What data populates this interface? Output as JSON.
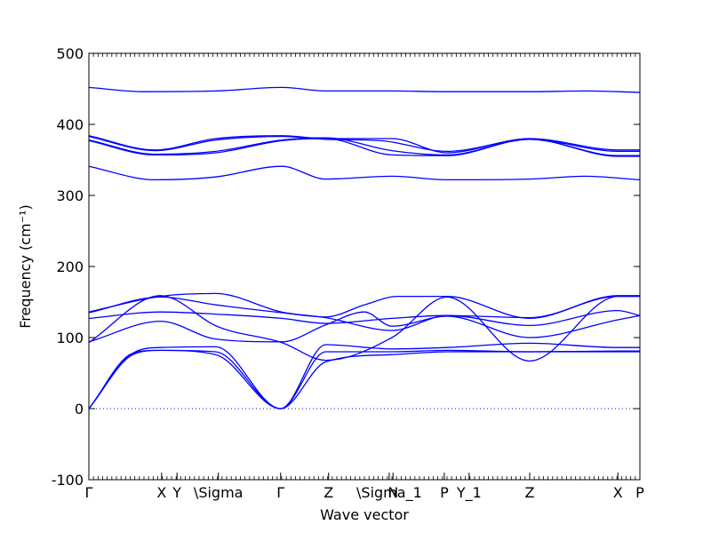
{
  "chart_data": {
    "type": "line",
    "title": "",
    "xlabel": "Wave vector",
    "ylabel": "Frequency (cm⁻¹)",
    "ylim": [
      -100,
      500
    ],
    "yticks": [
      -100,
      0,
      100,
      200,
      300,
      400,
      500
    ],
    "x_range": [
      0,
      10
    ],
    "xticks": [
      {
        "label": "Γ",
        "x": 0
      },
      {
        "label": "X",
        "x": 1.32
      },
      {
        "label": "Y",
        "x": 1.6
      },
      {
        "label": "\\Sigma",
        "x": 2.35
      },
      {
        "label": "Γ",
        "x": 3.48
      },
      {
        "label": "Z",
        "x": 4.35
      },
      {
        "label": "\\Sigma_1",
        "x": 5.45
      },
      {
        "label": "N",
        "x": 5.52
      },
      {
        "label": "P",
        "x": 6.45
      },
      {
        "label": "Y_1",
        "x": 6.9
      },
      {
        "label": "Z",
        "x": 8.0
      },
      {
        "label": "X",
        "x": 9.6
      },
      {
        "label": "P",
        "x": 10.0
      }
    ],
    "zero_line": 0,
    "line_color": "#0000ff",
    "series": [
      {
        "points": [
          [
            0,
            452
          ],
          [
            1.0,
            446
          ],
          [
            2.3,
            447
          ],
          [
            3.5,
            452
          ],
          [
            4.3,
            447
          ],
          [
            5.5,
            447
          ],
          [
            6.5,
            446
          ],
          [
            8.0,
            446
          ],
          [
            9.0,
            447
          ],
          [
            10,
            445
          ]
        ]
      },
      {
        "points": [
          [
            0,
            384
          ],
          [
            1.2,
            364
          ],
          [
            2.3,
            380
          ],
          [
            3.5,
            384
          ],
          [
            4.3,
            380
          ],
          [
            5.5,
            380
          ],
          [
            6.5,
            360
          ],
          [
            8.0,
            380
          ],
          [
            9.6,
            364
          ],
          [
            10,
            364
          ]
        ]
      },
      {
        "points": [
          [
            0,
            383
          ],
          [
            1.2,
            363
          ],
          [
            2.3,
            378
          ],
          [
            3.5,
            383
          ],
          [
            4.3,
            379
          ],
          [
            5.3,
            377
          ],
          [
            6.5,
            362
          ],
          [
            8.0,
            379
          ],
          [
            9.6,
            362
          ],
          [
            10,
            362
          ]
        ]
      },
      {
        "points": [
          [
            0,
            378
          ],
          [
            1.2,
            358
          ],
          [
            2.3,
            362
          ],
          [
            3.5,
            378
          ],
          [
            4.3,
            381
          ],
          [
            5.5,
            363
          ],
          [
            6.5,
            357
          ],
          [
            8.0,
            379
          ],
          [
            9.6,
            356
          ],
          [
            10,
            356
          ]
        ]
      },
      {
        "points": [
          [
            0,
            377
          ],
          [
            1.2,
            357
          ],
          [
            2.3,
            360
          ],
          [
            3.5,
            377
          ],
          [
            4.3,
            380
          ],
          [
            5.5,
            357
          ],
          [
            6.5,
            356
          ],
          [
            8.0,
            379
          ],
          [
            9.6,
            355
          ],
          [
            10,
            355
          ]
        ]
      },
      {
        "points": [
          [
            0,
            341
          ],
          [
            1.2,
            322
          ],
          [
            2.3,
            326
          ],
          [
            3.5,
            341
          ],
          [
            4.3,
            323
          ],
          [
            5.5,
            327
          ],
          [
            6.5,
            322
          ],
          [
            8.0,
            323
          ],
          [
            9.0,
            327
          ],
          [
            10,
            322
          ]
        ]
      },
      {
        "points": [
          [
            0,
            136
          ],
          [
            1.3,
            158
          ],
          [
            2.3,
            162
          ],
          [
            3.5,
            136
          ],
          [
            4.3,
            128
          ],
          [
            5.5,
            110
          ],
          [
            6.5,
            131
          ],
          [
            8.0,
            128
          ],
          [
            9.6,
            158
          ],
          [
            10,
            158
          ]
        ]
      },
      {
        "points": [
          [
            0,
            135
          ],
          [
            1.3,
            157
          ],
          [
            2.3,
            146
          ],
          [
            3.5,
            135
          ],
          [
            4.3,
            129
          ],
          [
            5.0,
            146
          ],
          [
            5.6,
            158
          ],
          [
            6.5,
            158
          ],
          [
            8.0,
            127
          ],
          [
            9.6,
            159
          ],
          [
            10,
            159
          ]
        ]
      },
      {
        "points": [
          [
            0,
            127
          ],
          [
            1.3,
            136
          ],
          [
            2.3,
            133
          ],
          [
            3.5,
            127
          ],
          [
            4.3,
            120
          ],
          [
            5.5,
            127
          ],
          [
            6.5,
            131
          ],
          [
            8.0,
            117
          ],
          [
            9.6,
            138
          ],
          [
            10,
            131
          ]
        ]
      },
      {
        "points": [
          [
            0,
            94
          ],
          [
            1.3,
            123
          ],
          [
            2.3,
            98
          ],
          [
            3.5,
            94
          ],
          [
            4.3,
            118
          ],
          [
            5.0,
            136
          ],
          [
            5.5,
            116
          ],
          [
            6.5,
            130
          ],
          [
            8.0,
            100
          ],
          [
            9.6,
            125
          ],
          [
            10,
            131
          ]
        ]
      },
      {
        "points": [
          [
            0,
            93
          ],
          [
            1.3,
            159
          ],
          [
            2.35,
            115
          ],
          [
            3.5,
            93
          ],
          [
            4.3,
            68
          ],
          [
            5.5,
            100
          ],
          [
            6.5,
            157
          ],
          [
            8.0,
            67
          ],
          [
            9.6,
            158
          ],
          [
            10,
            158
          ]
        ]
      },
      {
        "points": [
          [
            0,
            0
          ],
          [
            0.8,
            78
          ],
          [
            1.3,
            86
          ],
          [
            2.3,
            87
          ],
          [
            3.48,
            0
          ],
          [
            4.3,
            90
          ],
          [
            5.5,
            84
          ],
          [
            6.5,
            86
          ],
          [
            8.0,
            92
          ],
          [
            9.6,
            86
          ],
          [
            10,
            86
          ]
        ]
      },
      {
        "points": [
          [
            0,
            0
          ],
          [
            0.8,
            78
          ],
          [
            1.3,
            82
          ],
          [
            2.3,
            80
          ],
          [
            3.48,
            0
          ],
          [
            4.3,
            80
          ],
          [
            5.5,
            80
          ],
          [
            6.5,
            82
          ],
          [
            8.0,
            80
          ],
          [
            9.6,
            81
          ],
          [
            10,
            81
          ]
        ]
      },
      {
        "points": [
          [
            0,
            0
          ],
          [
            0.8,
            76
          ],
          [
            1.3,
            82
          ],
          [
            2.3,
            76
          ],
          [
            3.48,
            0
          ],
          [
            4.3,
            66
          ],
          [
            5.5,
            76
          ],
          [
            6.5,
            80
          ],
          [
            8.0,
            80
          ],
          [
            9.6,
            80
          ],
          [
            10,
            80
          ]
        ]
      }
    ]
  }
}
